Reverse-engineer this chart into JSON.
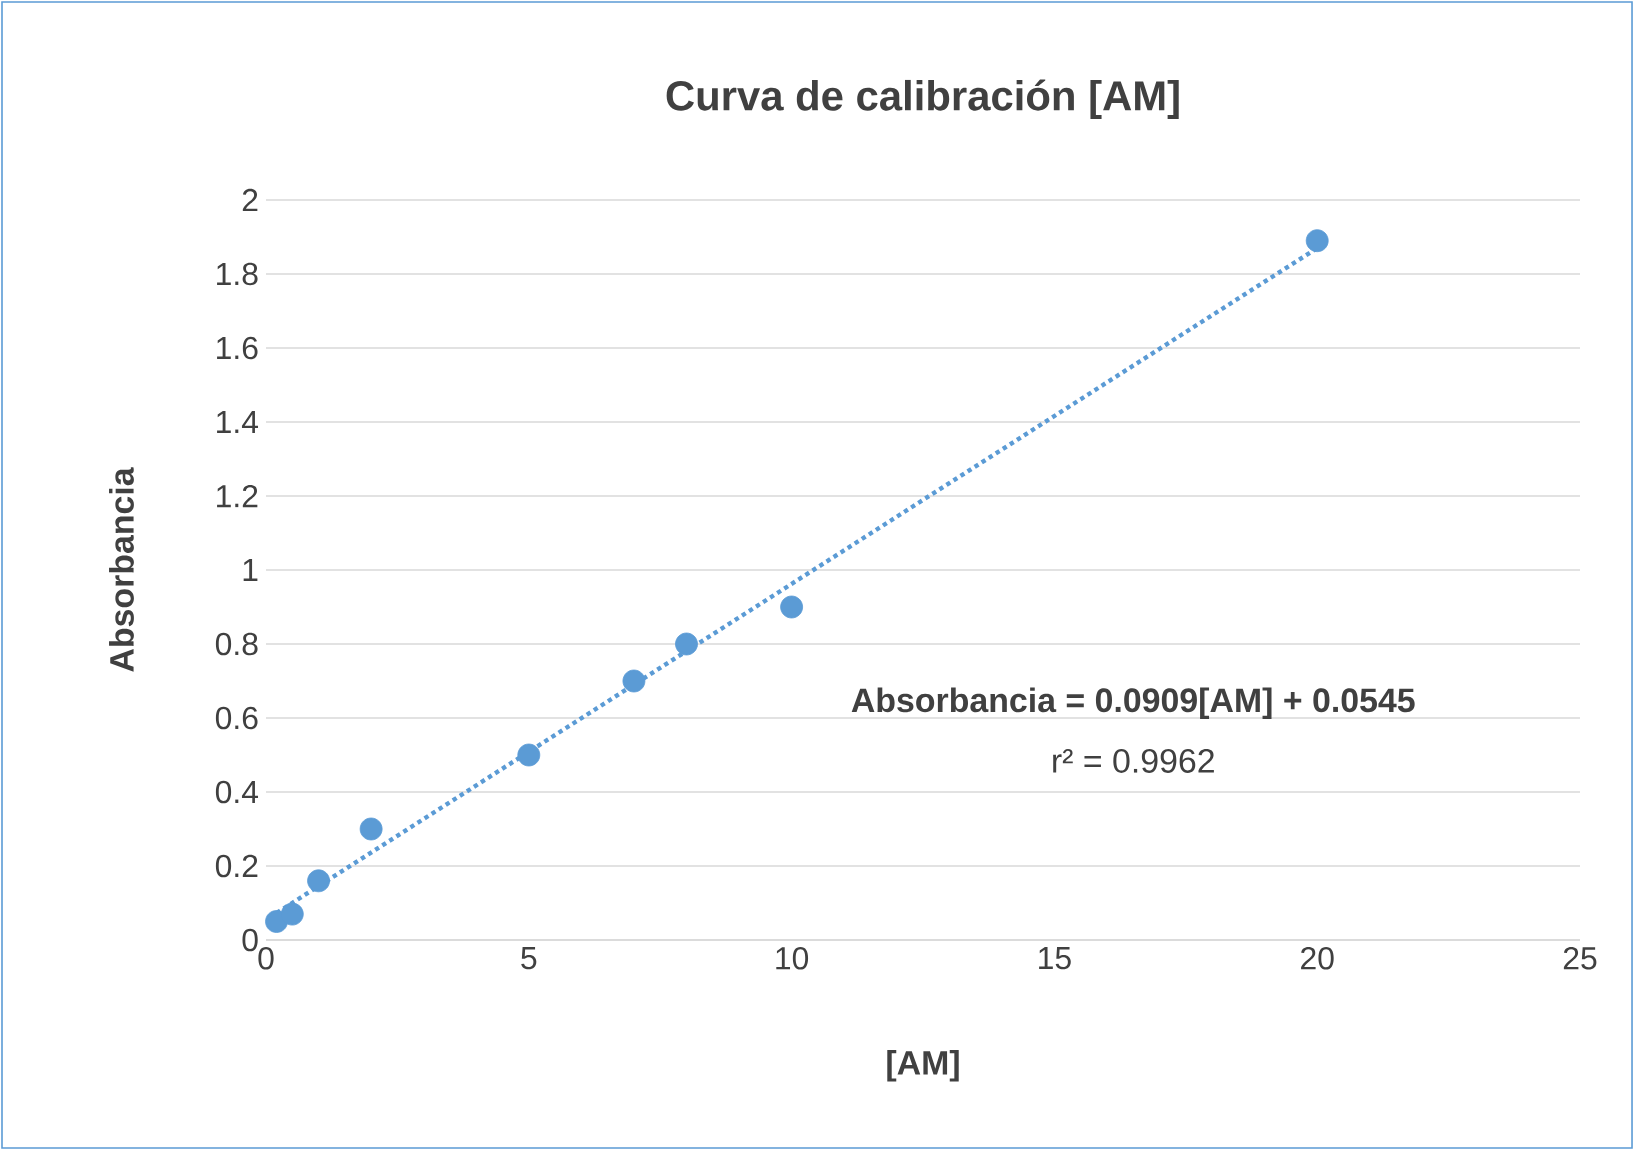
{
  "chart_data": {
    "type": "scatter",
    "title": "Curva de calibración [AM]",
    "xlabel": "[AM]",
    "ylabel": "Absorbancia",
    "xlim": [
      0,
      25
    ],
    "ylim": [
      0,
      2
    ],
    "xticks": [
      0,
      5,
      10,
      15,
      20,
      25
    ],
    "yticks": [
      0,
      0.2,
      0.4,
      0.6,
      0.8,
      1,
      1.2,
      1.4,
      1.6,
      1.8,
      2
    ],
    "grid": "y",
    "marker": "circle",
    "series": [
      {
        "color": "#5b9bd5",
        "x": [
          0.2,
          0.5,
          1,
          2,
          5,
          7,
          8,
          10,
          20
        ],
        "values": [
          0.05,
          0.07,
          0.16,
          0.3,
          0.5,
          0.7,
          0.8,
          0.9,
          1.89
        ]
      },
      {
        "type": "line",
        "color": "#5b9bd5",
        "line_style": "dotted",
        "marker": "none",
        "x": [
          0.2,
          20
        ],
        "values": [
          0.073,
          1.87
        ]
      }
    ],
    "annotations": [
      "**Absorbancia = 0.0909[AM] + 0.0545**",
      "r² = 0.9962"
    ]
  }
}
